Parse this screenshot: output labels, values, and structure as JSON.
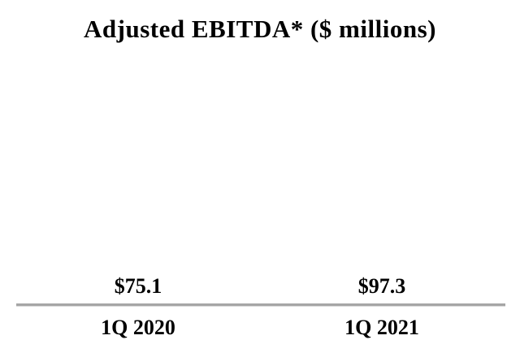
{
  "chart_data": {
    "type": "bar",
    "title": "Adjusted EBITDA* ($ millions)",
    "categories": [
      "1Q 2020",
      "1Q 2021"
    ],
    "values": [
      75.1,
      97.3
    ],
    "value_labels": [
      "$75.1",
      "$97.3"
    ],
    "xlabel": "",
    "ylabel": "",
    "ylim": [
      0,
      121
    ],
    "grid": false,
    "legend_position": "none",
    "bar_colors": [
      "#CDEBFB",
      "#0095FA"
    ],
    "axis_line_color": "#A6A6A6",
    "text_color": "#000000",
    "background_color": "#FFFFFF"
  }
}
